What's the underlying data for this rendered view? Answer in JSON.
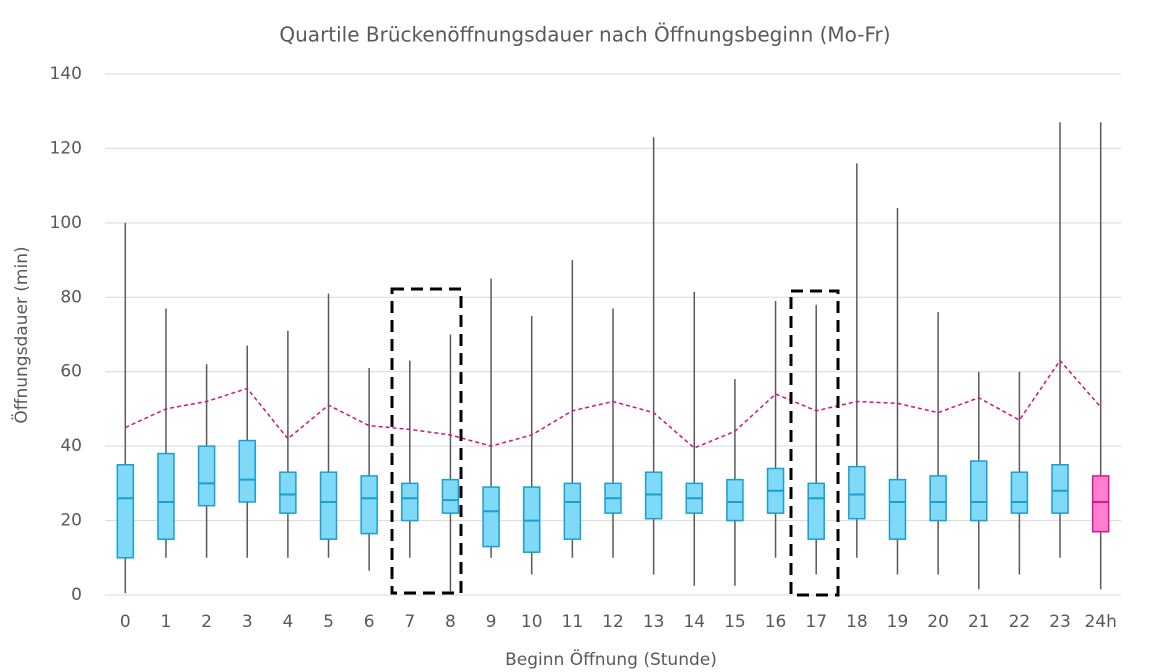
{
  "chart_data": {
    "type": "box",
    "title": "Quartile Brückenöffnungsdauer nach Öffnungsbeginn (Mo-Fr)",
    "x_label": "Beginn Öffnung (Stunde)",
    "y_label": "Öffnungsdauer (min)",
    "categories": [
      "0",
      "1",
      "2",
      "3",
      "4",
      "5",
      "6",
      "7",
      "8",
      "9",
      "10",
      "11",
      "12",
      "13",
      "14",
      "15",
      "16",
      "17",
      "18",
      "19",
      "20",
      "21",
      "22",
      "23",
      "24h"
    ],
    "min": [
      0.5,
      10,
      10,
      10,
      10,
      10,
      6.5,
      10,
      1,
      10,
      5.5,
      10,
      10,
      5.5,
      2.5,
      2.5,
      10,
      5.5,
      10,
      5.5,
      5.5,
      1.5,
      5.5,
      10,
      1.5
    ],
    "q1": [
      10,
      15,
      24,
      25,
      22,
      15,
      16.5,
      20,
      22,
      13,
      11.5,
      15,
      22,
      20.5,
      22,
      20,
      22,
      15,
      20.5,
      15,
      20,
      20,
      22,
      22,
      17
    ],
    "median": [
      26,
      25,
      30,
      31,
      27,
      25,
      26,
      26,
      25.5,
      22.5,
      20,
      25,
      26,
      27,
      26,
      25,
      28,
      26,
      27,
      25,
      25,
      25,
      25,
      28,
      25
    ],
    "q3": [
      35,
      38,
      40,
      41.5,
      33,
      33,
      32,
      30,
      31,
      29,
      29,
      30,
      30,
      33,
      30,
      31,
      34,
      30,
      34.5,
      31,
      32,
      36,
      33,
      35,
      32
    ],
    "max": [
      100,
      77,
      62,
      67,
      71,
      81,
      61,
      63,
      70,
      85,
      75,
      90,
      77,
      123,
      81.5,
      58,
      79,
      78,
      116,
      104,
      76,
      60,
      60,
      127,
      127
    ],
    "mean": [
      45,
      50,
      52,
      55.5,
      42,
      51,
      45.5,
      44.5,
      43,
      40,
      43,
      49.5,
      52,
      49,
      39.5,
      44,
      54,
      49.5,
      52,
      51.5,
      49,
      53,
      47,
      63,
      50.5
    ],
    "box_colors": [
      "#7fd9f7",
      "#7fd9f7",
      "#7fd9f7",
      "#7fd9f7",
      "#7fd9f7",
      "#7fd9f7",
      "#7fd9f7",
      "#7fd9f7",
      "#7fd9f7",
      "#7fd9f7",
      "#7fd9f7",
      "#7fd9f7",
      "#7fd9f7",
      "#7fd9f7",
      "#7fd9f7",
      "#7fd9f7",
      "#7fd9f7",
      "#7fd9f7",
      "#7fd9f7",
      "#7fd9f7",
      "#7fd9f7",
      "#7fd9f7",
      "#7fd9f7",
      "#7fd9f7",
      "#ff80cf"
    ],
    "box_edge_colors": [
      "#1a9fd0",
      "#1a9fd0",
      "#1a9fd0",
      "#1a9fd0",
      "#1a9fd0",
      "#1a9fd0",
      "#1a9fd0",
      "#1a9fd0",
      "#1a9fd0",
      "#1a9fd0",
      "#1a9fd0",
      "#1a9fd0",
      "#1a9fd0",
      "#1a9fd0",
      "#1a9fd0",
      "#1a9fd0",
      "#1a9fd0",
      "#1a9fd0",
      "#1a9fd0",
      "#1a9fd0",
      "#1a9fd0",
      "#1a9fd0",
      "#1a9fd0",
      "#1a9fd0",
      "#e0138c"
    ],
    "whisker_color": "#595959",
    "mean_color": "#d6127e",
    "ylim": [
      0,
      140
    ],
    "yticks": [
      0,
      20,
      40,
      60,
      80,
      100,
      120,
      140
    ],
    "grid": true
  }
}
